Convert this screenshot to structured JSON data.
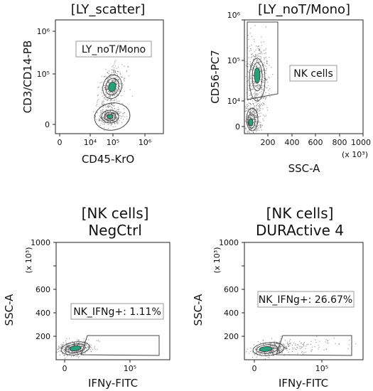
{
  "chart_data": [
    {
      "type": "scatter",
      "title": "[LY_scatter]",
      "xlabel": "CD45-KrO",
      "ylabel": "CD3/CD14-PB",
      "x_scale": "biexponential",
      "y_scale": "biexponential",
      "x_ticks": [
        "0",
        "10⁴",
        "10⁵",
        "10⁶"
      ],
      "y_ticks": [
        "0",
        "10⁵",
        "10⁶"
      ],
      "gates": [
        {
          "name": "LY_noT/Mono"
        }
      ],
      "populations": [
        {
          "center_x": 100000,
          "center_y": 30000
        },
        {
          "center_x": 100000,
          "center_y": 2000
        }
      ]
    },
    {
      "type": "scatter",
      "title": "[LY_noT/Mono]",
      "xlabel": "SSC-A",
      "ylabel": "CD56-PC7",
      "x_unit": "(x 10³)",
      "x_ticks": [
        "200",
        "400",
        "600",
        "800",
        "1000"
      ],
      "y_ticks": [
        "0",
        "10⁴",
        "10⁵",
        "10⁶"
      ],
      "xlim": [
        0,
        1000
      ],
      "gates": [
        {
          "name": "NK cells"
        }
      ],
      "populations": [
        {
          "center_x": 100,
          "center_y": 30000
        },
        {
          "center_x": 60,
          "center_y": 300
        }
      ]
    },
    {
      "type": "scatter",
      "title": "[NK cells]",
      "subtitle": "NegCtrl",
      "xlabel": "IFNy-FITC",
      "ylabel": "SSC-A",
      "y_unit": "(x 10³)",
      "x_ticks": [
        "0",
        "10⁵"
      ],
      "y_ticks": [
        "200",
        "400",
        "600",
        "800",
        "1000"
      ],
      "ylim": [
        0,
        1000
      ],
      "gates": [
        {
          "name": "NK_IFNg+",
          "percent": 1.11
        }
      ],
      "populations": [
        {
          "center_x": 5000,
          "center_y": 90
        }
      ]
    },
    {
      "type": "scatter",
      "title": "[NK cells]",
      "subtitle": "DURActive 4",
      "xlabel": "IFNy-FITC",
      "ylabel": "SSC-A",
      "y_unit": "(x 10³)",
      "x_ticks": [
        "0",
        "10⁵"
      ],
      "y_ticks": [
        "200",
        "400",
        "600",
        "800",
        "1000"
      ],
      "ylim": [
        0,
        1000
      ],
      "gates": [
        {
          "name": "NK_IFNg+",
          "percent": 26.67
        }
      ],
      "populations": [
        {
          "center_x": 8000,
          "center_y": 90
        }
      ]
    }
  ],
  "labels": {
    "p1_gate": "LY_noT/Mono",
    "p2_gate": "NK cells",
    "p3_gate": "NK_IFNg+: 1.11%",
    "p4_gate": "NK_IFNg+: 26.67%"
  }
}
